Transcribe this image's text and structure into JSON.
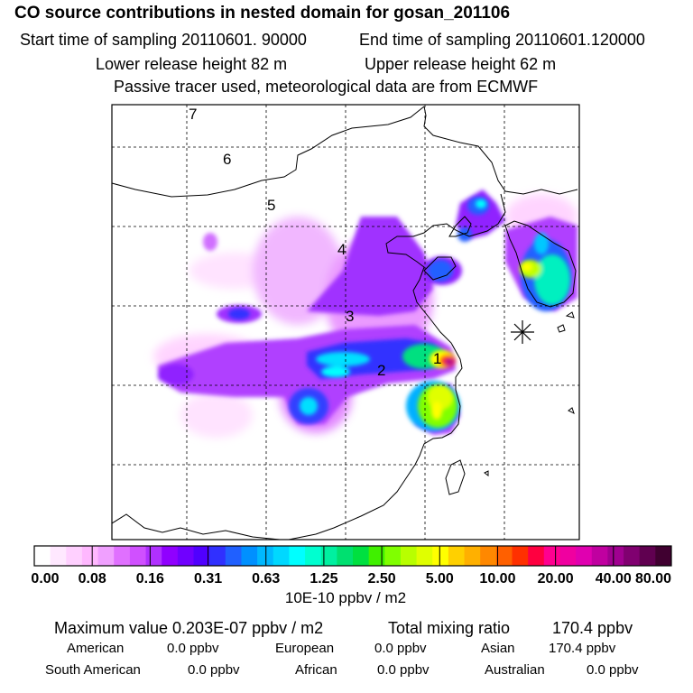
{
  "header": {
    "title": "CO  source contributions in nested domain for gosan_201106",
    "start_label": "Start time of sampling 20110601. 90000",
    "end_label": "End time of sampling 20110601.120000",
    "lower_label": "Lower release height   82 m",
    "upper_label": "Upper release height   62 m",
    "note": "Passive tracer used, meteorological data are from ECMWF"
  },
  "map": {
    "region_labels": [
      "1",
      "2",
      "3",
      "4",
      "5",
      "6",
      "7"
    ],
    "receptor_marker": "asterisk-icon",
    "coastline_color": "#000000",
    "grid_style": "dashed"
  },
  "color_scale": {
    "colors": [
      "#ffffff",
      "#ffe8ff",
      "#ffd0ff",
      "#ffb8ff",
      "#f0a0ff",
      "#e070ff",
      "#d050ff",
      "#b030ff",
      "#9000ff",
      "#7000ff",
      "#5000ff",
      "#3030ff",
      "#2060ff",
      "#0090ff",
      "#00b8ff",
      "#00d8ff",
      "#00ffff",
      "#00ffd0",
      "#00f0a0",
      "#00e070",
      "#00e040",
      "#40f000",
      "#80ff00",
      "#b8ff00",
      "#e0ff00",
      "#ffff00",
      "#ffd000",
      "#ffb000",
      "#ff8800",
      "#ff6000",
      "#ff3000",
      "#ff0040",
      "#ff0090",
      "#f000a0",
      "#e000b0",
      "#c000a0",
      "#a00090",
      "#800070",
      "#600050",
      "#400030"
    ],
    "tick_labels": [
      "0.00",
      "0.08",
      "0.16",
      "0.31",
      "0.63",
      "1.25",
      "2.50",
      "5.00",
      "10.00",
      "20.00",
      "40.00",
      "80.00"
    ],
    "unit_label": "10E-10 ppbv / m2"
  },
  "stats": {
    "max_label": "Maximum value  0.203E-07 ppbv / m2",
    "total_label": "Total mixing ratio",
    "total_value": "170.4 ppbv",
    "american_label": "American",
    "american_value": "0.0 ppbv",
    "european_label": "European",
    "european_value": "0.0 ppbv",
    "asian_label": "Asian",
    "asian_value": "170.4 ppbv",
    "south_american_label": "South American",
    "south_american_value": "0.0 ppbv",
    "african_label": "African",
    "african_value": "0.0 ppbv",
    "australian_label": "Australian",
    "australian_value": "0.0 ppbv"
  }
}
